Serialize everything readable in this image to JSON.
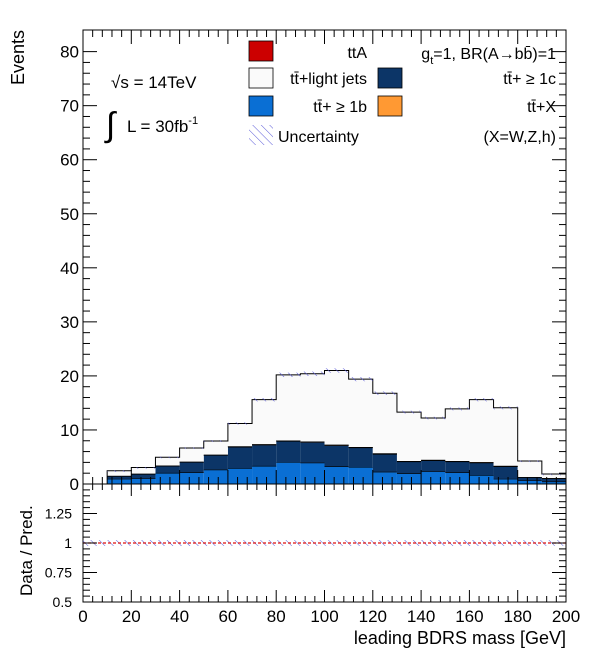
{
  "chart_data": [
    {
      "type": "bar",
      "stacked": true,
      "histogram": true,
      "xlim": [
        0,
        200
      ],
      "ylim": [
        0,
        84
      ],
      "xlabel": "leading BDRS mass [GeV]",
      "ylabel": "Events",
      "bin_edges": [
        0,
        10,
        20,
        30,
        40,
        50,
        60,
        70,
        80,
        90,
        100,
        110,
        120,
        130,
        140,
        150,
        160,
        170,
        180,
        190,
        200
      ],
      "series": [
        {
          "name": "tt̄+ ≥ 1b",
          "color": "#0a6fd4",
          "values": [
            0,
            0.9,
            1.0,
            2.0,
            2.1,
            2.6,
            2.9,
            3.3,
            4.0,
            3.9,
            3.2,
            3.1,
            2.2,
            1.9,
            2.3,
            2.1,
            1.6,
            0.9,
            0.6,
            0.4
          ]
        },
        {
          "name": "tt̄+ ≥ 1c",
          "color": "#0c3567",
          "values": [
            0,
            0.5,
            0.8,
            1.3,
            1.9,
            2.7,
            3.9,
            3.9,
            3.9,
            3.8,
            3.9,
            3.6,
            3.3,
            2.2,
            2.0,
            2.0,
            2.3,
            2.3,
            0.6,
            0.6
          ]
        },
        {
          "name": "tt̄+X",
          "color": "#ff9933",
          "values": [
            0,
            0.05,
            0.05,
            0.05,
            0.05,
            0.05,
            0.1,
            0.1,
            0.1,
            0.1,
            0.1,
            0.1,
            0.1,
            0.1,
            0.1,
            0.1,
            0.1,
            0.1,
            0.05,
            0.05
          ]
        },
        {
          "name": "ttA",
          "color": "#cc0000",
          "values": [
            0,
            0,
            0,
            0,
            0,
            0,
            0,
            0,
            0,
            0,
            0,
            0,
            0,
            0,
            0,
            0,
            0,
            0,
            0,
            0
          ]
        },
        {
          "name": "tt̄+light jets",
          "color": "#fafafa",
          "values": [
            0,
            1.0,
            1.2,
            1.6,
            2.6,
            2.6,
            4.3,
            8.3,
            12.2,
            12.6,
            13.8,
            12.6,
            11.2,
            9.1,
            7.8,
            9.7,
            11.6,
            10.8,
            3.0,
            0.8
          ]
        }
      ],
      "xticks": [
        0,
        20,
        40,
        60,
        80,
        100,
        120,
        140,
        160,
        180,
        200
      ],
      "yticks": [
        0,
        10,
        20,
        30,
        40,
        50,
        60,
        70,
        80
      ],
      "uncertainty_label": "Uncertainty",
      "annotations": {
        "energy_prefix": "√s",
        "energy_value": " = 14TeV",
        "lumi_integral": "∫",
        "lumi_text": "L = 30fb",
        "lumi_exp": "-1",
        "coupling_g": "g",
        "coupling_sub": "t",
        "coupling_rest": "=1, BR(A→bb̄)=1",
        "x_def": "(X=W,Z,h)"
      },
      "legend_position": "top"
    },
    {
      "type": "line",
      "ylabel": "Data / Pred.",
      "ylim": [
        0.5,
        1.5
      ],
      "xlim": [
        0,
        200
      ],
      "yticks": [
        0.5,
        0.75,
        1,
        1.25
      ],
      "ytick_labels": [
        "0.5",
        "0.75",
        "1",
        "1.25"
      ],
      "reference_line": 1,
      "uncertainty_band": [
        0.975,
        1.025
      ]
    }
  ]
}
